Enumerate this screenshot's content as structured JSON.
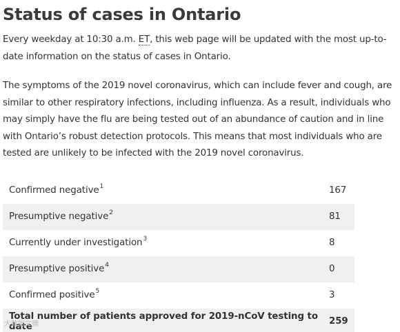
{
  "page": {
    "title": "Status of cases in Ontario",
    "intro_before": "Every weekday at 10:30 a.m. ",
    "intro_abbr": "ET",
    "intro_after": ", this web page will be updated with the most up-to-date information on the status of cases in Ontario.",
    "symptoms": "The symptoms of the 2019 novel coronavirus, which can include fever and cough, are similar to other respiratory infections, including influenza. As a result, individuals who may simply have the flu are being tested out of an abundance of caution and in line with Ontario’s robust detection protocols. This means that most individuals who are tested are unlikely to be infected with the 2019 novel coronavirus."
  },
  "table": {
    "rows": [
      {
        "label": "Confirmed negative",
        "footnote": "1",
        "value": "167"
      },
      {
        "label": "Presumptive negative",
        "footnote": "2",
        "value": "81"
      },
      {
        "label": "Currently under investigation",
        "footnote": "3",
        "value": "8"
      },
      {
        "label": "Presumptive positive",
        "footnote": "4",
        "value": "0"
      },
      {
        "label": "Confirmed positive",
        "footnote": "5",
        "value": "3"
      }
    ],
    "total": {
      "label": "Total number of patients approved for 2019-nCoV testing to date",
      "value": "259"
    }
  },
  "watermark": {
    "text": "大数据文摘"
  },
  "colors": {
    "row_shade": "#f0f0f0",
    "text": "#333333"
  }
}
